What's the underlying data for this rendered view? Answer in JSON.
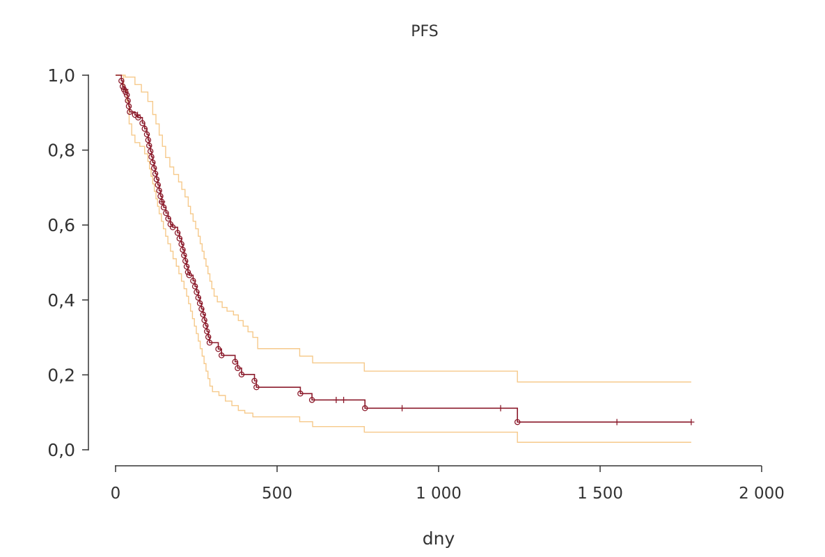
{
  "chart_data": {
    "type": "line",
    "title": "PFS",
    "xlabel": "dny",
    "ylabel": "",
    "xlim": [
      0,
      2000
    ],
    "ylim": [
      0,
      1
    ],
    "x_ticks": [
      0,
      500,
      1000,
      1500,
      2000
    ],
    "x_tick_labels": [
      "0",
      "500",
      "1 000",
      "1 500",
      "2 000"
    ],
    "y_ticks": [
      0,
      0.2,
      0.4,
      0.6,
      0.8,
      1.0
    ],
    "y_tick_labels": [
      "0,0",
      "0,2",
      "0,4",
      "0,6",
      "0,8",
      "1,0"
    ],
    "grid": false,
    "colors": {
      "survival": "#8b1a2b",
      "ci": "#f6c98a",
      "axis": "#333333"
    },
    "series": [
      {
        "role": "survival",
        "step": [
          [
            0,
            1.0
          ],
          [
            18,
            0.985
          ],
          [
            22,
            0.97
          ],
          [
            26,
            0.962
          ],
          [
            31,
            0.955
          ],
          [
            35,
            0.947
          ],
          [
            38,
            0.932
          ],
          [
            41,
            0.917
          ],
          [
            44,
            0.902
          ],
          [
            60,
            0.894
          ],
          [
            70,
            0.887
          ],
          [
            83,
            0.872
          ],
          [
            90,
            0.857
          ],
          [
            97,
            0.842
          ],
          [
            101,
            0.827
          ],
          [
            104,
            0.812
          ],
          [
            108,
            0.797
          ],
          [
            111,
            0.782
          ],
          [
            115,
            0.767
          ],
          [
            119,
            0.752
          ],
          [
            123,
            0.737
          ],
          [
            127,
            0.722
          ],
          [
            131,
            0.707
          ],
          [
            135,
            0.692
          ],
          [
            139,
            0.677
          ],
          [
            143,
            0.662
          ],
          [
            149,
            0.647
          ],
          [
            156,
            0.632
          ],
          [
            163,
            0.617
          ],
          [
            170,
            0.602
          ],
          [
            177,
            0.594
          ],
          [
            192,
            0.579
          ],
          [
            198,
            0.564
          ],
          [
            204,
            0.549
          ],
          [
            208,
            0.534
          ],
          [
            212,
            0.519
          ],
          [
            216,
            0.504
          ],
          [
            220,
            0.489
          ],
          [
            224,
            0.474
          ],
          [
            228,
            0.466
          ],
          [
            240,
            0.451
          ],
          [
            246,
            0.436
          ],
          [
            251,
            0.421
          ],
          [
            256,
            0.406
          ],
          [
            261,
            0.391
          ],
          [
            266,
            0.376
          ],
          [
            271,
            0.361
          ],
          [
            275,
            0.346
          ],
          [
            279,
            0.331
          ],
          [
            283,
            0.316
          ],
          [
            287,
            0.301
          ],
          [
            291,
            0.286
          ],
          [
            318,
            0.269
          ],
          [
            328,
            0.252
          ],
          [
            370,
            0.235
          ],
          [
            378,
            0.218
          ],
          [
            390,
            0.201
          ],
          [
            430,
            0.184
          ],
          [
            436,
            0.167
          ],
          [
            572,
            0.15
          ],
          [
            608,
            0.133
          ],
          [
            772,
            0.111
          ],
          [
            1244,
            0.074
          ],
          [
            1782,
            0.074
          ]
        ],
        "censored_times": [
          30,
          68,
          144,
          683,
          706,
          887,
          1192,
          1552,
          1782
        ]
      },
      {
        "role": "ci-upper",
        "step": [
          [
            0,
            1.0
          ],
          [
            30,
            0.995
          ],
          [
            60,
            0.975
          ],
          [
            80,
            0.955
          ],
          [
            100,
            0.93
          ],
          [
            115,
            0.895
          ],
          [
            125,
            0.87
          ],
          [
            135,
            0.84
          ],
          [
            145,
            0.81
          ],
          [
            155,
            0.78
          ],
          [
            168,
            0.755
          ],
          [
            180,
            0.735
          ],
          [
            195,
            0.715
          ],
          [
            205,
            0.695
          ],
          [
            215,
            0.675
          ],
          [
            225,
            0.65
          ],
          [
            232,
            0.63
          ],
          [
            240,
            0.61
          ],
          [
            248,
            0.59
          ],
          [
            256,
            0.57
          ],
          [
            262,
            0.55
          ],
          [
            268,
            0.53
          ],
          [
            274,
            0.51
          ],
          [
            280,
            0.49
          ],
          [
            286,
            0.47
          ],
          [
            292,
            0.45
          ],
          [
            298,
            0.43
          ],
          [
            305,
            0.41
          ],
          [
            315,
            0.395
          ],
          [
            330,
            0.38
          ],
          [
            345,
            0.37
          ],
          [
            365,
            0.36
          ],
          [
            380,
            0.345
          ],
          [
            395,
            0.33
          ],
          [
            410,
            0.315
          ],
          [
            425,
            0.3
          ],
          [
            440,
            0.27
          ],
          [
            570,
            0.25
          ],
          [
            610,
            0.232
          ],
          [
            770,
            0.21
          ],
          [
            1244,
            0.181
          ],
          [
            1782,
            0.181
          ]
        ]
      },
      {
        "role": "ci-lower",
        "step": [
          [
            0,
            1.0
          ],
          [
            25,
            0.96
          ],
          [
            35,
            0.93
          ],
          [
            42,
            0.87
          ],
          [
            50,
            0.84
          ],
          [
            60,
            0.82
          ],
          [
            75,
            0.81
          ],
          [
            90,
            0.79
          ],
          [
            100,
            0.77
          ],
          [
            105,
            0.75
          ],
          [
            110,
            0.73
          ],
          [
            115,
            0.71
          ],
          [
            120,
            0.69
          ],
          [
            125,
            0.67
          ],
          [
            130,
            0.65
          ],
          [
            135,
            0.63
          ],
          [
            142,
            0.61
          ],
          [
            148,
            0.59
          ],
          [
            155,
            0.57
          ],
          [
            162,
            0.55
          ],
          [
            170,
            0.53
          ],
          [
            178,
            0.51
          ],
          [
            188,
            0.49
          ],
          [
            196,
            0.47
          ],
          [
            204,
            0.45
          ],
          [
            212,
            0.43
          ],
          [
            220,
            0.41
          ],
          [
            226,
            0.39
          ],
          [
            232,
            0.37
          ],
          [
            238,
            0.35
          ],
          [
            244,
            0.33
          ],
          [
            250,
            0.31
          ],
          [
            256,
            0.29
          ],
          [
            262,
            0.27
          ],
          [
            268,
            0.25
          ],
          [
            274,
            0.23
          ],
          [
            280,
            0.21
          ],
          [
            286,
            0.19
          ],
          [
            292,
            0.17
          ],
          [
            300,
            0.155
          ],
          [
            320,
            0.145
          ],
          [
            340,
            0.13
          ],
          [
            360,
            0.118
          ],
          [
            380,
            0.105
          ],
          [
            400,
            0.098
          ],
          [
            425,
            0.088
          ],
          [
            570,
            0.075
          ],
          [
            610,
            0.062
          ],
          [
            770,
            0.047
          ],
          [
            1244,
            0.02
          ],
          [
            1782,
            0.02
          ]
        ]
      }
    ]
  }
}
